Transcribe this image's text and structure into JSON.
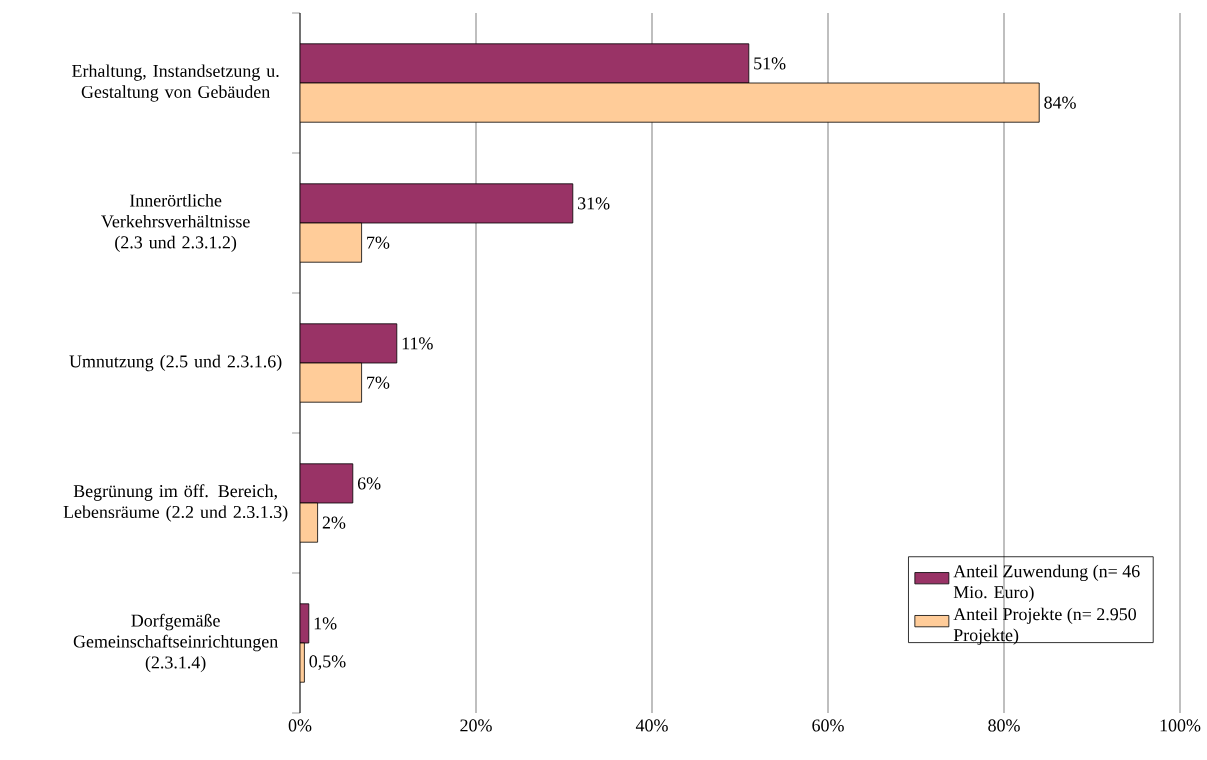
{
  "chart_data": {
    "type": "bar",
    "orientation": "horizontal",
    "categories": [
      "Erhaltung, Instandsetzung u. Gestaltung von Gebäuden",
      "Innerörtliche Verkehrsverhältnisse (2.3 und 2.3.1.2)",
      "Umnutzung (2.5 und 2.3.1.6)",
      "Begrünung im öff. Bereich, Lebensräume (2.2 und 2.3.1.3)",
      "Dorfgemäße Gemeinschaftseinrichtungen (2.3.1.4)"
    ],
    "series": [
      {
        "name": "Anteil Zuwendung (n= 46 Mio. Euro)",
        "color": "#993366",
        "values": [
          51,
          31,
          11,
          6,
          1
        ],
        "value_labels": [
          "51%",
          "31%",
          "11%",
          "6%",
          "1%"
        ]
      },
      {
        "name": "Anteil Projekte (n= 2.950 Projekte)",
        "color": "#ffcc99",
        "values": [
          84,
          7,
          7,
          2,
          0.5
        ],
        "value_labels": [
          "84%",
          "7%",
          "7%",
          "2%",
          "0,5%"
        ]
      }
    ],
    "xlim": [
      0,
      100
    ],
    "xticks": [
      {
        "value": 0,
        "label": "0%"
      },
      {
        "value": 20,
        "label": "20%"
      },
      {
        "value": 40,
        "label": "40%"
      },
      {
        "value": 60,
        "label": "60%"
      },
      {
        "value": 80,
        "label": "80%"
      },
      {
        "value": 100,
        "label": "100%"
      }
    ],
    "grid": "x",
    "legend": "bottom right"
  }
}
